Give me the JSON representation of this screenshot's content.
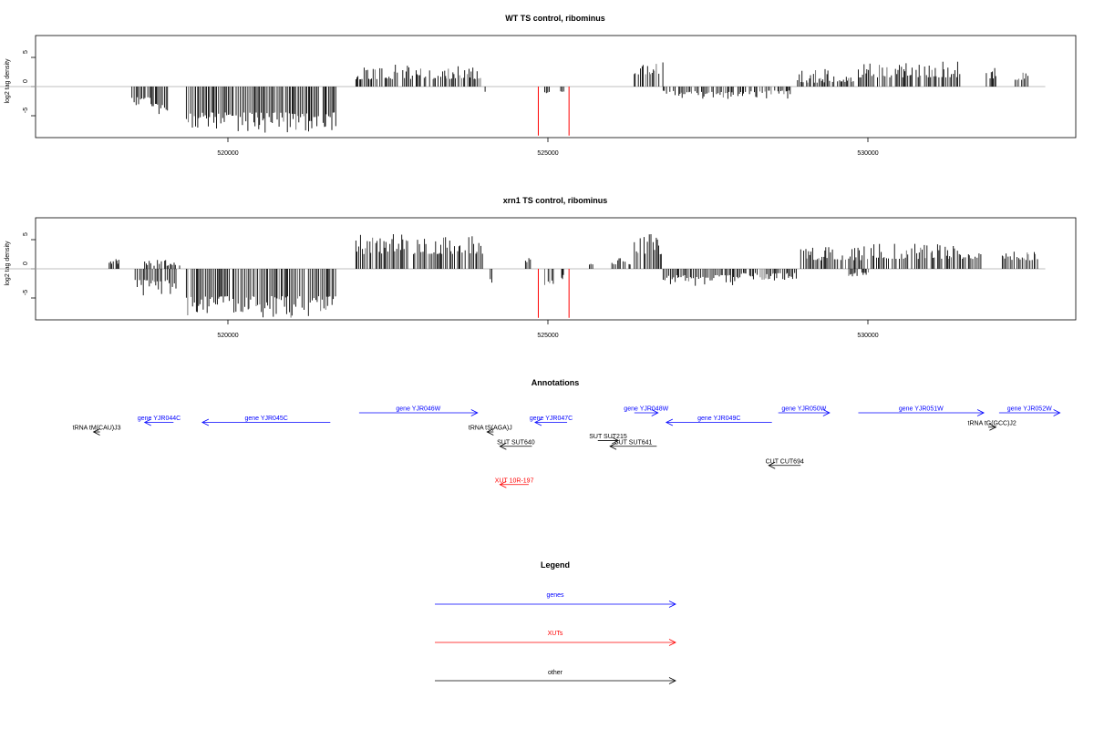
{
  "chart_data": [
    {
      "type": "bar",
      "title": "WT TS control, ribominus",
      "ylabel": "log2 tag density",
      "xlim": [
        517500,
        533000
      ],
      "ylim": [
        -9,
        9
      ],
      "x_ticks": [
        520000,
        525000,
        530000
      ],
      "x_tick_labels": [
        "520000",
        "525000",
        "530000"
      ],
      "y_ticks": [
        -5,
        0,
        5
      ],
      "y_tick_labels": [
        "-5",
        "0",
        "5"
      ],
      "baseline_range": [
        517500,
        532700
      ],
      "series": [
        {
          "color": "#000000",
          "segments": [
            {
              "start": 518500,
              "end": 518800,
              "sign": -1,
              "mean": 2.2,
              "amp": 1.3
            },
            {
              "start": 518800,
              "end": 519100,
              "sign": -1,
              "mean": 3.5,
              "amp": 1.5
            },
            {
              "start": 519350,
              "end": 521700,
              "sign": -1,
              "mean": 5.2,
              "amp": 2.2
            },
            {
              "start": 522000,
              "end": 523950,
              "sign": 1,
              "mean": 1.8,
              "amp": 1.6
            },
            {
              "start": 524000,
              "end": 524050,
              "sign": -1,
              "mean": 1.0,
              "amp": 0.3
            },
            {
              "start": 524950,
              "end": 525050,
              "sign": -1,
              "mean": 1.2,
              "amp": 0.8
            },
            {
              "start": 525200,
              "end": 525250,
              "sign": -1,
              "mean": 0.8,
              "amp": 0.2
            },
            {
              "start": 526350,
              "end": 526800,
              "sign": 1,
              "mean": 2.6,
              "amp": 1.6
            },
            {
              "start": 526800,
              "end": 527350,
              "sign": -1,
              "mean": 1.0,
              "amp": 0.8
            },
            {
              "start": 527400,
              "end": 528100,
              "sign": -1,
              "mean": 1.2,
              "amp": 0.8
            },
            {
              "start": 528150,
              "end": 528800,
              "sign": -1,
              "mean": 1.0,
              "amp": 0.9
            },
            {
              "start": 528900,
              "end": 529400,
              "sign": 1,
              "mean": 1.2,
              "amp": 1.5
            },
            {
              "start": 529400,
              "end": 529800,
              "sign": 1,
              "mean": 1.0,
              "amp": 0.6
            },
            {
              "start": 529850,
              "end": 531450,
              "sign": 1,
              "mean": 2.2,
              "amp": 1.8
            },
            {
              "start": 531850,
              "end": 532000,
              "sign": 1,
              "mean": 1.8,
              "amp": 1.2
            },
            {
              "start": 532300,
              "end": 532550,
              "sign": 1,
              "mean": 1.5,
              "amp": 1.0
            }
          ]
        },
        {
          "color": "#ff0000",
          "bars": [
            {
              "x": 524850,
              "y": -8.4
            },
            {
              "x": 525330,
              "y": -8.4
            }
          ]
        }
      ]
    },
    {
      "type": "bar",
      "title": "xrn1 TS control, ribominus",
      "ylabel": "log2 tag density",
      "xlim": [
        517500,
        533000
      ],
      "ylim": [
        -9,
        9
      ],
      "x_ticks": [
        520000,
        525000,
        530000
      ],
      "x_tick_labels": [
        "520000",
        "525000",
        "530000"
      ],
      "y_ticks": [
        -5,
        0,
        5
      ],
      "y_tick_labels": [
        "-5",
        "0",
        "5"
      ],
      "baseline_range": [
        517500,
        532700
      ],
      "series": [
        {
          "color": "#000000",
          "segments": [
            {
              "start": 518100,
              "end": 518300,
              "sign": 1,
              "mean": 1.0,
              "amp": 0.6
            },
            {
              "start": 518550,
              "end": 519200,
              "sign": -1,
              "mean": 2.5,
              "amp": 1.7
            },
            {
              "start": 518700,
              "end": 519300,
              "sign": 1,
              "mean": 0.8,
              "amp": 0.8
            },
            {
              "start": 519350,
              "end": 521700,
              "sign": -1,
              "mean": 5.5,
              "amp": 2.3
            },
            {
              "start": 522000,
              "end": 524000,
              "sign": 1,
              "mean": 3.3,
              "amp": 2.2
            },
            {
              "start": 524100,
              "end": 524150,
              "sign": -1,
              "mean": 2.0,
              "amp": 1.0
            },
            {
              "start": 524650,
              "end": 524750,
              "sign": 1,
              "mean": 1.5,
              "amp": 1.0
            },
            {
              "start": 524950,
              "end": 525100,
              "sign": -1,
              "mean": 2.0,
              "amp": 1.0
            },
            {
              "start": 525200,
              "end": 525250,
              "sign": -1,
              "mean": 1.2,
              "amp": 0.5
            },
            {
              "start": 525650,
              "end": 525700,
              "sign": 1,
              "mean": 0.8,
              "amp": 0.2
            },
            {
              "start": 526000,
              "end": 526300,
              "sign": 1,
              "mean": 1.0,
              "amp": 0.8
            },
            {
              "start": 526350,
              "end": 526800,
              "sign": 1,
              "mean": 3.3,
              "amp": 2.3
            },
            {
              "start": 526800,
              "end": 528000,
              "sign": -1,
              "mean": 1.5,
              "amp": 1.2
            },
            {
              "start": 528000,
              "end": 528900,
              "sign": -1,
              "mean": 1.0,
              "amp": 0.8
            },
            {
              "start": 528950,
              "end": 530000,
              "sign": 1,
              "mean": 2.0,
              "amp": 1.5
            },
            {
              "start": 529700,
              "end": 530050,
              "sign": -1,
              "mean": 0.8,
              "amp": 0.5
            },
            {
              "start": 530050,
              "end": 531800,
              "sign": 1,
              "mean": 2.3,
              "amp": 1.7
            },
            {
              "start": 532100,
              "end": 532650,
              "sign": 1,
              "mean": 1.8,
              "amp": 1.0
            }
          ]
        },
        {
          "color": "#ff0000",
          "bars": [
            {
              "x": 524850,
              "y": -8.4
            },
            {
              "x": 525330,
              "y": -8.4
            }
          ]
        }
      ]
    }
  ],
  "annotations": {
    "title": "Annotations",
    "xlim": [
      517500,
      533000
    ],
    "items": [
      {
        "label": "gene YJR044C",
        "color": "#0000ff",
        "start": 519150,
        "end": 518700,
        "row": 1
      },
      {
        "label": "gene YJR045C",
        "color": "#0000ff",
        "start": 521600,
        "end": 519600,
        "row": 1
      },
      {
        "label": "gene YJR046W",
        "color": "#0000ff",
        "start": 522050,
        "end": 523900,
        "row": 0
      },
      {
        "label": "gene YJR047C",
        "color": "#0000ff",
        "start": 525300,
        "end": 524800,
        "row": 1
      },
      {
        "label": "gene YJR048W",
        "color": "#0000ff",
        "start": 526350,
        "end": 526720,
        "row": 0
      },
      {
        "label": "gene YJR049C",
        "color": "#0000ff",
        "start": 528500,
        "end": 526850,
        "row": 1
      },
      {
        "label": "gene YJR050W",
        "color": "#0000ff",
        "start": 528600,
        "end": 529400,
        "row": 0
      },
      {
        "label": "gene YJR051W",
        "color": "#0000ff",
        "start": 529850,
        "end": 531810,
        "row": 0
      },
      {
        "label": "gene YJR052W",
        "color": "#0000ff",
        "start": 532050,
        "end": 533000,
        "row": 0
      },
      {
        "label": "tRNA tM(CAU)J3",
        "color": "#000000",
        "start": 518000,
        "end": 517900,
        "row": 2
      },
      {
        "label": "tRNA tS(AGA)J",
        "color": "#000000",
        "start": 524150,
        "end": 524050,
        "row": 2
      },
      {
        "label": "tRNA tG(GCC)J2",
        "color": "#000000",
        "start": 531880,
        "end": 532000,
        "row": 1.5
      },
      {
        "label": "SUT SUT215",
        "color": "#000000",
        "start": 525780,
        "end": 526100,
        "row": 2.9
      },
      {
        "label": "SUT SUT640",
        "color": "#000000",
        "start": 524750,
        "end": 524250,
        "row": 3.5
      },
      {
        "label": "SUT SUT641",
        "color": "#000000",
        "start": 526700,
        "end": 525970,
        "row": 3.5
      },
      {
        "label": "CUT CUT694",
        "color": "#000000",
        "start": 528950,
        "end": 528450,
        "row": 5.5
      },
      {
        "label": "XUT 10R-197",
        "color": "#ff0000",
        "start": 524700,
        "end": 524250,
        "row": 7.5
      }
    ]
  },
  "legend": {
    "title": "Legend",
    "items": [
      {
        "label": "genes",
        "color": "#0000ff"
      },
      {
        "label": "XUTs",
        "color": "#ff0000"
      },
      {
        "label": "other",
        "color": "#000000"
      }
    ]
  }
}
